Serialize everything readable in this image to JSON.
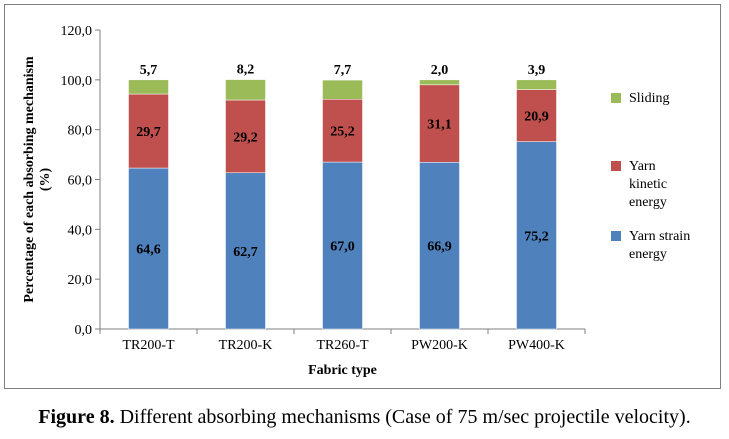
{
  "chart_data": {
    "type": "bar",
    "stacked": true,
    "categories": [
      "TR200-T",
      "TR200-K",
      "TR260-T",
      "PW200-K",
      "PW400-K"
    ],
    "series": [
      {
        "name": "Yarn strain energy",
        "values": [
          64.6,
          62.7,
          67.0,
          66.9,
          75.2
        ],
        "labels": [
          "64,6",
          "62,7",
          "67,0",
          "66,9",
          "75,2"
        ],
        "color": "#4f81bd"
      },
      {
        "name": "Yarn kinetic energy",
        "values": [
          29.7,
          29.2,
          25.2,
          31.1,
          20.9
        ],
        "labels": [
          "29,7",
          "29,2",
          "25,2",
          "31,1",
          "20,9"
        ],
        "color": "#c0504d"
      },
      {
        "name": "Sliding",
        "values": [
          5.7,
          8.2,
          7.7,
          2.0,
          3.9
        ],
        "labels": [
          "5,7",
          "8,2",
          "7,7",
          "2,0",
          "3,9"
        ],
        "color": "#9bbb59"
      }
    ],
    "xlabel": "Fabric type",
    "ylabel_lines": [
      "Percentage of each absorbing mechanism",
      "(%)"
    ],
    "ylim": [
      0,
      120
    ],
    "yticks": [
      0,
      20,
      40,
      60,
      80,
      100,
      120
    ],
    "ytick_labels": [
      "0,0",
      "20,0",
      "40,0",
      "60,0",
      "80,0",
      "100,0",
      "120,0"
    ],
    "grid": false,
    "legend_position": "right",
    "legend": [
      {
        "lines": [
          "Sliding"
        ],
        "color": "#9bbb59"
      },
      {
        "lines": [
          "Yarn",
          "kinetic",
          "energy"
        ],
        "color": "#c0504d"
      },
      {
        "lines": [
          "Yarn strain",
          "energy"
        ],
        "color": "#4f81bd"
      }
    ]
  },
  "caption": {
    "number": "Figure 8.",
    "text": " Different absorbing mechanisms (Case of 75 m/sec projectile velocity)."
  }
}
